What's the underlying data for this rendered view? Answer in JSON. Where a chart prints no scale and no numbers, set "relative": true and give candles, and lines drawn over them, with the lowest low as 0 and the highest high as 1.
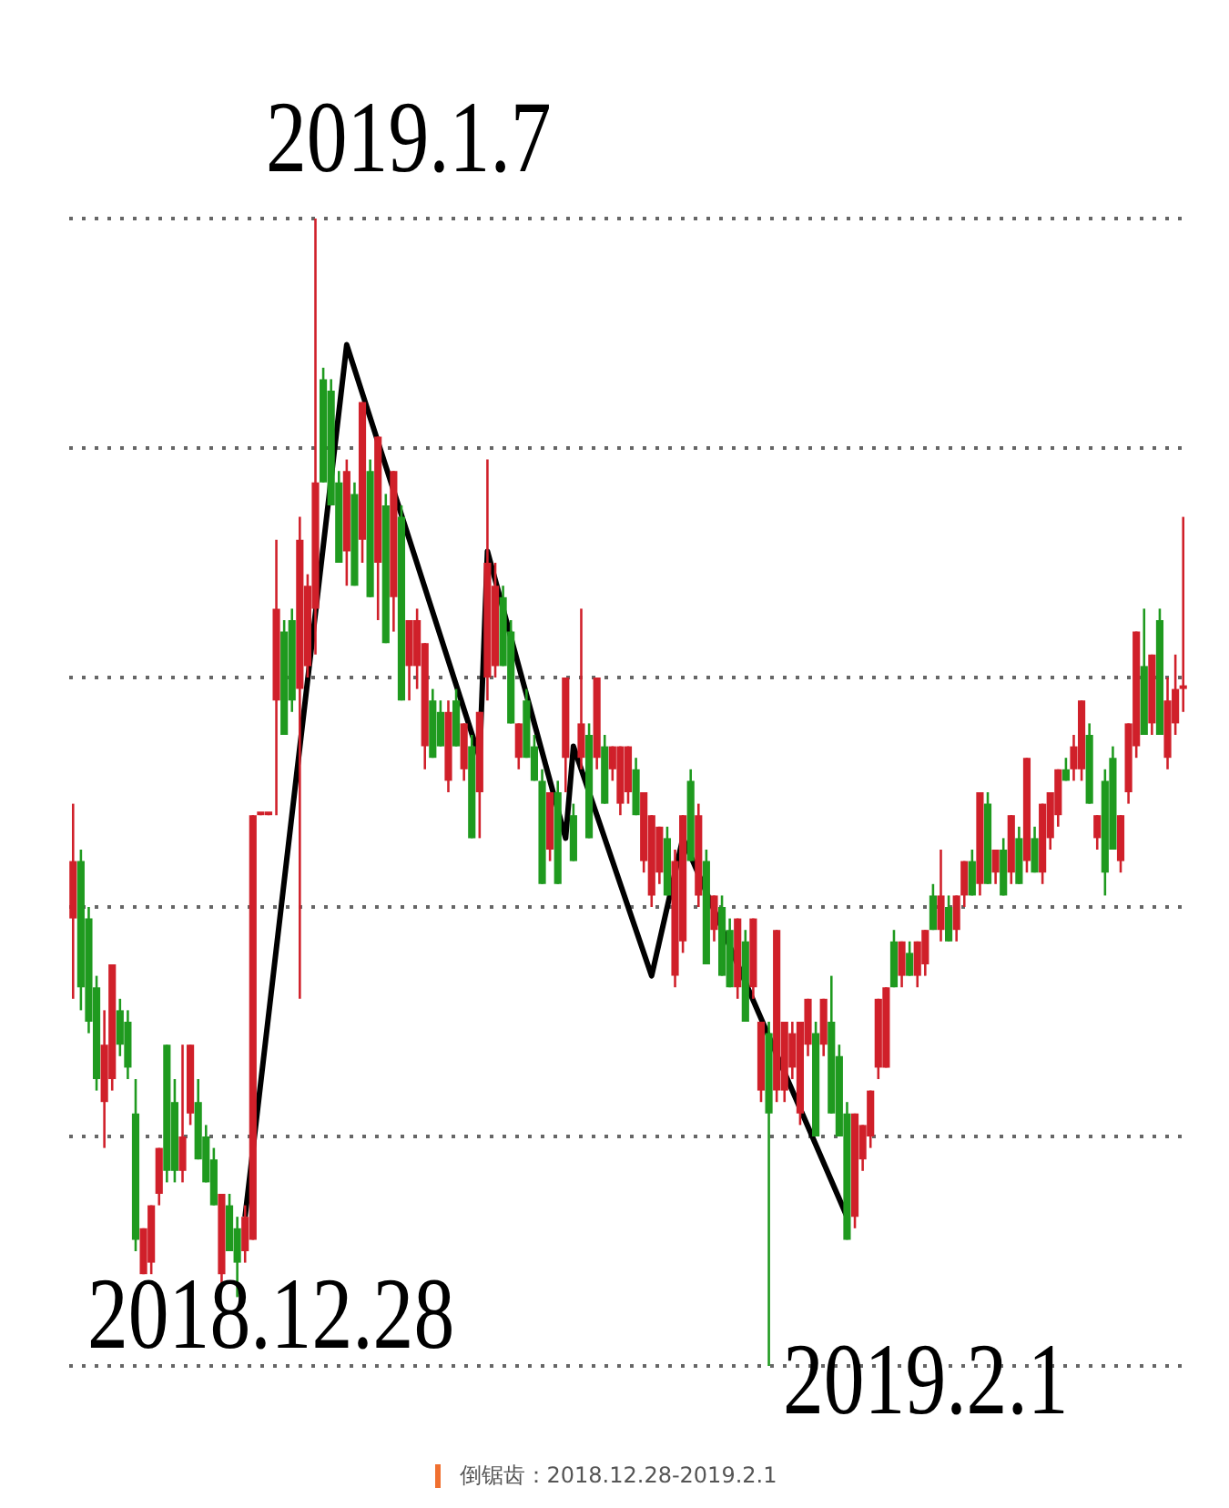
{
  "chart_data": {
    "type": "candlestick",
    "relative": true,
    "grid": "y",
    "legend": false,
    "tick_labels": false,
    "annotations": [
      "2019.1.7",
      "2018.12.28",
      "2019.2.1",
      "倒锯齿：2018.12.28-2019.2.1"
    ],
    "categories": [
      null,
      null,
      null,
      null,
      null,
      null,
      null,
      null,
      null,
      null,
      null,
      null,
      null,
      null,
      null,
      null,
      null,
      null,
      null,
      null,
      null,
      null,
      null,
      null,
      null,
      null,
      null,
      null,
      null,
      null,
      null,
      null,
      null,
      null,
      null,
      null,
      null,
      null,
      null,
      null,
      null,
      null,
      null,
      null,
      null,
      null,
      null,
      null,
      null,
      null,
      null,
      null,
      null,
      null,
      null,
      null,
      null,
      null,
      null,
      null,
      null,
      null,
      null,
      null,
      null,
      null,
      null,
      null,
      null,
      null,
      null,
      null,
      null,
      null,
      null,
      null,
      null,
      null,
      null,
      null,
      null,
      null,
      null,
      null,
      null,
      null,
      null,
      null,
      null,
      null,
      null,
      null,
      null,
      null,
      null,
      null,
      null,
      null,
      null,
      null,
      null,
      null,
      null,
      null,
      null,
      null,
      null,
      null,
      null,
      null,
      null,
      null,
      null,
      null,
      null,
      null,
      null,
      null,
      null,
      null,
      null,
      null,
      null,
      null,
      null,
      null,
      null,
      null,
      null,
      null,
      null,
      null,
      null,
      null,
      null,
      null,
      null,
      null,
      null,
      null,
      null,
      null,
      null
    ],
    "series": [
      {
        "ohlc": [
          [
            0.39,
            0.49,
            0.32,
            0.44
          ],
          [
            0.44,
            0.45,
            0.31,
            0.33
          ],
          [
            0.39,
            0.4,
            0.29,
            0.3
          ],
          [
            0.33,
            0.34,
            0.24,
            0.25
          ],
          [
            0.23,
            0.31,
            0.19,
            0.28
          ],
          [
            0.25,
            0.35,
            0.24,
            0.35
          ],
          [
            0.31,
            0.32,
            0.27,
            0.28
          ],
          [
            0.3,
            0.31,
            0.25,
            0.26
          ],
          [
            0.22,
            0.25,
            0.1,
            0.11
          ],
          [
            0.08,
            0.12,
            0.08,
            0.12
          ],
          [
            0.09,
            0.14,
            0.08,
            0.14
          ],
          [
            0.15,
            0.19,
            0.14,
            0.19
          ],
          [
            0.28,
            0.28,
            0.16,
            0.17
          ],
          [
            0.23,
            0.25,
            0.16,
            0.17
          ],
          [
            0.17,
            0.28,
            0.16,
            0.2
          ],
          [
            0.22,
            0.28,
            0.21,
            0.28
          ],
          [
            0.23,
            0.25,
            0.18,
            0.18
          ],
          [
            0.2,
            0.21,
            0.16,
            0.16
          ],
          [
            0.18,
            0.19,
            0.14,
            0.14
          ],
          [
            0.08,
            0.15,
            0.07,
            0.15
          ],
          [
            0.14,
            0.15,
            0.1,
            0.1
          ],
          [
            0.12,
            0.13,
            0.06,
            0.09
          ],
          [
            0.1,
            0.14,
            0.09,
            0.13
          ],
          [
            0.11,
            0.48,
            0.11,
            0.48
          ],
          [
            0.48,
            0.48,
            0.48,
            0.48
          ],
          [
            0.48,
            0.48,
            0.48,
            0.48
          ],
          [
            0.58,
            0.72,
            0.48,
            0.66
          ],
          [
            0.64,
            0.65,
            0.55,
            0.55
          ],
          [
            0.65,
            0.66,
            0.57,
            0.58
          ],
          [
            0.59,
            0.74,
            0.32,
            0.72
          ],
          [
            0.61,
            0.69,
            0.6,
            0.68
          ],
          [
            0.66,
            1.0,
            0.62,
            0.77
          ],
          [
            0.86,
            0.87,
            0.77,
            0.77
          ],
          [
            0.85,
            0.86,
            0.75,
            0.75
          ],
          [
            0.77,
            0.78,
            0.7,
            0.7
          ],
          [
            0.71,
            0.79,
            0.68,
            0.78
          ],
          [
            0.76,
            0.77,
            0.68,
            0.68
          ],
          [
            0.72,
            0.84,
            0.7,
            0.84
          ],
          [
            0.78,
            0.79,
            0.67,
            0.67
          ],
          [
            0.7,
            0.81,
            0.65,
            0.81
          ],
          [
            0.75,
            0.76,
            0.63,
            0.63
          ],
          [
            0.67,
            0.78,
            0.64,
            0.78
          ],
          [
            0.74,
            0.75,
            0.58,
            0.58
          ],
          [
            0.61,
            0.65,
            0.58,
            0.65
          ],
          [
            0.61,
            0.66,
            0.59,
            0.65
          ],
          [
            0.54,
            0.63,
            0.52,
            0.63
          ],
          [
            0.58,
            0.59,
            0.53,
            0.53
          ],
          [
            0.57,
            0.58,
            0.54,
            0.54
          ],
          [
            0.51,
            0.58,
            0.5,
            0.57
          ],
          [
            0.58,
            0.59,
            0.54,
            0.54
          ],
          [
            0.52,
            0.56,
            0.51,
            0.56
          ],
          [
            0.54,
            0.55,
            0.46,
            0.46
          ],
          [
            0.5,
            0.57,
            0.46,
            0.57
          ],
          [
            0.6,
            0.79,
            0.58,
            0.7
          ],
          [
            0.61,
            0.7,
            0.6,
            0.68
          ],
          [
            0.67,
            0.68,
            0.61,
            0.61
          ],
          [
            0.64,
            0.65,
            0.56,
            0.56
          ],
          [
            0.53,
            0.56,
            0.52,
            0.56
          ],
          [
            0.58,
            0.59,
            0.53,
            0.53
          ],
          [
            0.54,
            0.55,
            0.51,
            0.51
          ],
          [
            0.51,
            0.52,
            0.42,
            0.42
          ],
          [
            0.45,
            0.5,
            0.44,
            0.5
          ],
          [
            0.5,
            0.51,
            0.42,
            0.42
          ],
          [
            0.53,
            0.6,
            0.5,
            0.6
          ],
          [
            0.48,
            0.49,
            0.44,
            0.44
          ],
          [
            0.53,
            0.66,
            0.52,
            0.56
          ],
          [
            0.55,
            0.56,
            0.46,
            0.46
          ],
          [
            0.53,
            0.6,
            0.52,
            0.6
          ],
          [
            0.54,
            0.55,
            0.49,
            0.49
          ],
          [
            0.52,
            0.54,
            0.51,
            0.54
          ],
          [
            0.49,
            0.54,
            0.48,
            0.54
          ],
          [
            0.5,
            0.54,
            0.49,
            0.54
          ],
          [
            0.52,
            0.53,
            0.48,
            0.48
          ],
          [
            0.44,
            0.5,
            0.43,
            0.5
          ],
          [
            0.41,
            0.48,
            0.4,
            0.48
          ],
          [
            0.43,
            0.47,
            0.42,
            0.47
          ],
          [
            0.46,
            0.47,
            0.41,
            0.41
          ],
          [
            0.34,
            0.45,
            0.33,
            0.44
          ],
          [
            0.37,
            0.48,
            0.36,
            0.48
          ],
          [
            0.51,
            0.52,
            0.44,
            0.44
          ],
          [
            0.41,
            0.49,
            0.4,
            0.48
          ],
          [
            0.44,
            0.45,
            0.35,
            0.35
          ],
          [
            0.38,
            0.41,
            0.37,
            0.41
          ],
          [
            0.4,
            0.41,
            0.34,
            0.34
          ],
          [
            0.38,
            0.39,
            0.33,
            0.33
          ],
          [
            0.33,
            0.39,
            0.32,
            0.39
          ],
          [
            0.37,
            0.38,
            0.3,
            0.3
          ],
          [
            0.33,
            0.39,
            0.32,
            0.39
          ],
          [
            0.24,
            0.3,
            0.23,
            0.3
          ],
          [
            0.29,
            0.3,
            0.0,
            0.22
          ],
          [
            0.24,
            0.38,
            0.23,
            0.38
          ],
          [
            0.24,
            0.3,
            0.23,
            0.3
          ],
          [
            0.26,
            0.3,
            0.25,
            0.29
          ],
          [
            0.22,
            0.3,
            0.21,
            0.3
          ],
          [
            0.28,
            0.32,
            0.27,
            0.32
          ],
          [
            0.29,
            0.3,
            0.2,
            0.2
          ],
          [
            0.28,
            0.32,
            0.27,
            0.32
          ],
          [
            0.3,
            0.34,
            0.22,
            0.22
          ],
          [
            0.27,
            0.28,
            0.2,
            0.2
          ],
          [
            0.22,
            0.23,
            0.11,
            0.11
          ],
          [
            0.13,
            0.22,
            0.12,
            0.22
          ],
          [
            0.18,
            0.21,
            0.17,
            0.21
          ],
          [
            0.2,
            0.24,
            0.19,
            0.24
          ],
          [
            0.26,
            0.32,
            0.25,
            0.32
          ],
          [
            0.26,
            0.33,
            0.26,
            0.33
          ],
          [
            0.37,
            0.38,
            0.33,
            0.33
          ],
          [
            0.34,
            0.37,
            0.33,
            0.37
          ],
          [
            0.36,
            0.37,
            0.34,
            0.34
          ],
          [
            0.34,
            0.37,
            0.33,
            0.37
          ],
          [
            0.35,
            0.38,
            0.34,
            0.38
          ],
          [
            0.41,
            0.42,
            0.38,
            0.38
          ],
          [
            0.38,
            0.45,
            0.37,
            0.41
          ],
          [
            0.4,
            0.41,
            0.37,
            0.37
          ],
          [
            0.38,
            0.41,
            0.37,
            0.41
          ],
          [
            0.41,
            0.44,
            0.4,
            0.44
          ],
          [
            0.44,
            0.45,
            0.41,
            0.41
          ],
          [
            0.42,
            0.5,
            0.41,
            0.5
          ],
          [
            0.49,
            0.5,
            0.42,
            0.42
          ],
          [
            0.43,
            0.45,
            0.42,
            0.45
          ],
          [
            0.45,
            0.46,
            0.41,
            0.41
          ],
          [
            0.43,
            0.48,
            0.42,
            0.48
          ],
          [
            0.46,
            0.47,
            0.42,
            0.42
          ],
          [
            0.44,
            0.53,
            0.43,
            0.53
          ],
          [
            0.46,
            0.47,
            0.43,
            0.43
          ],
          [
            0.43,
            0.49,
            0.42,
            0.49
          ],
          [
            0.46,
            0.5,
            0.45,
            0.5
          ],
          [
            0.48,
            0.52,
            0.47,
            0.52
          ],
          [
            0.52,
            0.53,
            0.51,
            0.51
          ],
          [
            0.52,
            0.55,
            0.51,
            0.54
          ],
          [
            0.52,
            0.58,
            0.51,
            0.58
          ],
          [
            0.55,
            0.56,
            0.49,
            0.49
          ],
          [
            0.46,
            0.48,
            0.45,
            0.48
          ],
          [
            0.51,
            0.52,
            0.41,
            0.43
          ],
          [
            0.53,
            0.54,
            0.45,
            0.45
          ],
          [
            0.44,
            0.48,
            0.43,
            0.48
          ],
          [
            0.5,
            0.56,
            0.49,
            0.56
          ],
          [
            0.54,
            0.64,
            0.53,
            0.64
          ],
          [
            0.61,
            0.66,
            0.55,
            0.55
          ],
          [
            0.56,
            0.62,
            0.55,
            0.62
          ],
          [
            0.65,
            0.66,
            0.55,
            0.55
          ],
          [
            0.53,
            0.6,
            0.52,
            0.58
          ],
          [
            0.56,
            0.62,
            0.55,
            0.59
          ],
          [
            0.59,
            0.74,
            0.57,
            0.59
          ]
        ],
        "colors": [
          "#d0202a",
          "#1f9a1f",
          "#1f9a1f",
          "#1f9a1f",
          "#d0202a",
          "#d0202a",
          "#1f9a1f",
          "#1f9a1f",
          "#1f9a1f",
          "#d0202a",
          "#d0202a",
          "#d0202a",
          "#1f9a1f",
          "#1f9a1f",
          "#d0202a",
          "#d0202a",
          "#1f9a1f",
          "#1f9a1f",
          "#1f9a1f",
          "#d0202a",
          "#1f9a1f",
          "#1f9a1f",
          "#d0202a",
          "#d0202a",
          "#d0202a",
          "#d0202a",
          "#d0202a",
          "#1f9a1f",
          "#1f9a1f",
          "#d0202a",
          "#d0202a",
          "#d0202a",
          "#1f9a1f",
          "#1f9a1f",
          "#1f9a1f",
          "#d0202a",
          "#1f9a1f",
          "#d0202a",
          "#1f9a1f",
          "#d0202a",
          "#1f9a1f",
          "#d0202a",
          "#1f9a1f",
          "#d0202a",
          "#d0202a",
          "#d0202a",
          "#1f9a1f",
          "#1f9a1f",
          "#d0202a",
          "#1f9a1f",
          "#d0202a",
          "#1f9a1f",
          "#d0202a",
          "#d0202a",
          "#d0202a",
          "#1f9a1f",
          "#1f9a1f",
          "#d0202a",
          "#1f9a1f",
          "#1f9a1f",
          "#1f9a1f",
          "#d0202a",
          "#1f9a1f",
          "#d0202a",
          "#1f9a1f",
          "#d0202a",
          "#1f9a1f",
          "#d0202a",
          "#1f9a1f",
          "#d0202a",
          "#d0202a",
          "#d0202a",
          "#1f9a1f",
          "#d0202a",
          "#d0202a",
          "#d0202a",
          "#1f9a1f",
          "#d0202a",
          "#d0202a",
          "#1f9a1f",
          "#d0202a",
          "#1f9a1f",
          "#d0202a",
          "#1f9a1f",
          "#1f9a1f",
          "#d0202a",
          "#1f9a1f",
          "#d0202a",
          "#d0202a",
          "#1f9a1f",
          "#d0202a",
          "#d0202a",
          "#d0202a",
          "#d0202a",
          "#d0202a",
          "#1f9a1f",
          "#d0202a",
          "#1f9a1f",
          "#1f9a1f",
          "#1f9a1f",
          "#d0202a",
          "#d0202a",
          "#d0202a",
          "#d0202a",
          "#d0202a",
          "#1f9a1f",
          "#d0202a",
          "#1f9a1f",
          "#d0202a",
          "#d0202a",
          "#1f9a1f",
          "#d0202a",
          "#1f9a1f",
          "#d0202a",
          "#d0202a",
          "#1f9a1f",
          "#d0202a",
          "#1f9a1f",
          "#d0202a",
          "#1f9a1f",
          "#d0202a",
          "#1f9a1f",
          "#d0202a",
          "#1f9a1f",
          "#d0202a",
          "#d0202a",
          "#d0202a",
          "#1f9a1f",
          "#d0202a",
          "#d0202a",
          "#1f9a1f",
          "#d0202a",
          "#1f9a1f",
          "#1f9a1f",
          "#d0202a",
          "#d0202a",
          "#d0202a",
          "#1f9a1f",
          "#d0202a",
          "#1f9a1f",
          "#d0202a",
          "#d0202a",
          "#d0202a"
        ]
      },
      {
        "type": "line",
        "color": "#000000",
        "values": [
          null,
          null,
          null,
          null,
          null,
          null,
          null,
          null,
          null,
          null,
          null,
          null,
          null,
          null,
          null,
          null,
          null,
          null,
          null,
          null,
          null,
          null,
          0.13,
          null,
          null,
          null,
          null,
          null,
          null,
          null,
          null,
          null,
          null,
          null,
          null,
          0.89,
          null,
          null,
          null,
          null,
          null,
          null,
          null,
          null,
          null,
          null,
          null,
          null,
          null,
          null,
          null,
          null,
          0.53,
          0.71,
          null,
          null,
          null,
          null,
          null,
          null,
          null,
          null,
          null,
          0.46,
          0.54,
          null,
          null,
          null,
          null,
          null,
          null,
          null,
          null,
          null,
          0.34,
          null,
          null,
          null,
          0.46,
          null,
          null,
          null,
          null,
          null,
          null,
          null,
          null,
          null,
          null,
          null,
          null,
          null,
          null,
          null,
          null,
          null,
          null,
          null,
          null,
          0.13,
          null,
          null,
          null,
          null,
          null,
          null,
          null,
          null,
          null,
          null,
          null,
          null,
          null,
          null,
          null,
          null,
          null,
          null,
          null,
          null,
          null,
          null,
          null,
          null,
          null,
          null,
          null,
          null,
          null,
          null,
          null,
          null,
          null,
          null,
          null,
          null,
          null,
          null,
          null,
          null,
          null,
          null,
          null
        ]
      }
    ]
  }
}
